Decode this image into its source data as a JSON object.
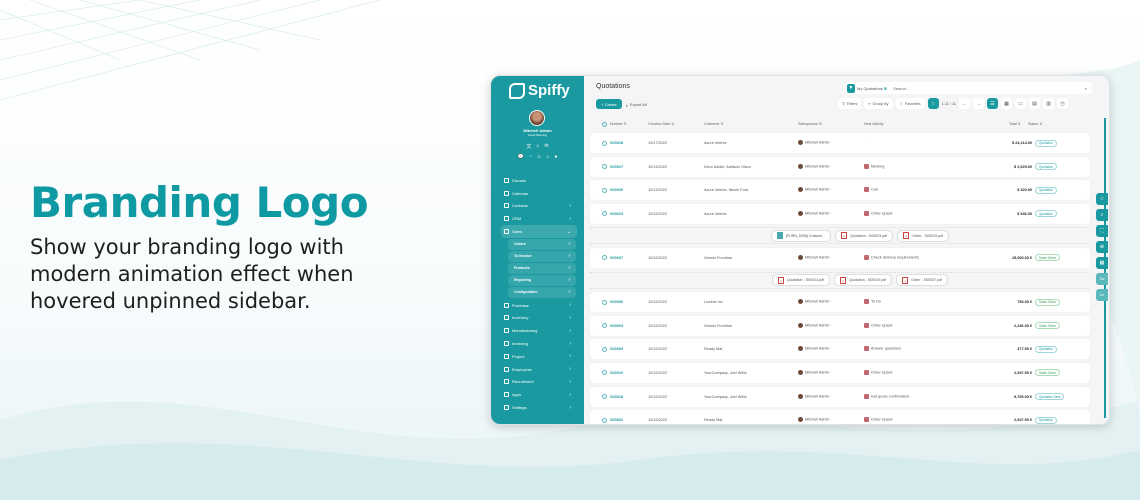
{
  "hero": {
    "title": "Branding Logo",
    "description": "Show your branding logo with modern animation effect when hovered unpinned sidebar."
  },
  "colors": {
    "brand": "#1a9aa0",
    "title": "#0f9aa3"
  },
  "sidebar": {
    "logo": "Spiffy",
    "user_name": "Mitchell Admin",
    "greeting": "Good Morning",
    "items": [
      {
        "label": "Discuss",
        "icon": "chat-icon",
        "chevron": false
      },
      {
        "label": "Calendar",
        "icon": "calendar-icon",
        "chevron": false
      },
      {
        "label": "Contacts",
        "icon": "contacts-icon",
        "chevron": true
      },
      {
        "label": "CRM",
        "icon": "crm-icon",
        "chevron": true
      },
      {
        "label": "Sales",
        "icon": "sales-icon",
        "chevron": true,
        "expanded": true
      }
    ],
    "sales_sub": [
      "Orders",
      "To invoice",
      "Products",
      "Reporting",
      "Configuration"
    ],
    "items_after": [
      {
        "label": "Purchase",
        "icon": "purchase-icon"
      },
      {
        "label": "Inventory",
        "icon": "inventory-icon"
      },
      {
        "label": "Manufacturing",
        "icon": "manufacturing-icon"
      },
      {
        "label": "Invoicing",
        "icon": "invoicing-icon"
      },
      {
        "label": "Project",
        "icon": "project-icon"
      },
      {
        "label": "Employees",
        "icon": "employees-icon"
      },
      {
        "label": "Recruitment",
        "icon": "recruitment-icon"
      },
      {
        "label": "Apps",
        "icon": "apps-icon"
      },
      {
        "label": "Settings",
        "icon": "settings-icon"
      }
    ]
  },
  "main": {
    "title": "Quotations",
    "facet": "My Quotations",
    "search_placeholder": "Search...",
    "create": "+ Create",
    "export": "Export All",
    "filters": "Filters",
    "group_by": "Group By",
    "favorites": "Favorites",
    "pager": "1-11 / 11",
    "columns": [
      "Number",
      "Creation Date",
      "Customer",
      "Salesperson",
      "Next Activity",
      "Total",
      "Status"
    ],
    "rows": [
      {
        "type": "row",
        "number": "S00028",
        "date": "10/17/2022",
        "customer": "Azure Interior",
        "salesperson": "Mitchell Admin",
        "activity": "",
        "total": "$ 24,114.00",
        "status": "Quotation"
      },
      {
        "type": "row",
        "number": "S00027",
        "date": "10/13/2022",
        "customer": "Deco Addict, Addison Olson",
        "salesperson": "Mitchell Admin",
        "activity": "Meeting",
        "total": "$ 2,025.00",
        "status": "Quotation"
      },
      {
        "type": "row",
        "number": "S00026",
        "date": "10/13/2022",
        "customer": "Azure Interior, Nicole Ford",
        "salesperson": "Mitchell Admin",
        "activity": "Call",
        "total": "$ 320.00",
        "status": "Quotation"
      },
      {
        "type": "row",
        "number": "S00023",
        "date": "10/12/2022",
        "customer": "Azure Interior",
        "salesperson": "Mitchell Admin",
        "activity": "Order Upsell",
        "total": "$ 546.00",
        "status": "Quotation"
      },
      {
        "type": "attachments",
        "files": [
          {
            "name": "[FURN_0096] Customi...",
            "kind": "image"
          },
          {
            "name": "Quotation - S00023.pdf",
            "kind": "pdf"
          },
          {
            "name": "Order - S00015.pdf",
            "kind": "pdf"
          }
        ]
      },
      {
        "type": "row",
        "number": "S00007",
        "date": "10/12/2022",
        "customer": "Gemini Furniture",
        "salesperson": "Mitchell Admin",
        "activity": "Check delivery requirements",
        "total": "15,060.00 €",
        "status": "Sales Order"
      },
      {
        "type": "attachments",
        "files": [
          {
            "name": "Quotation - S00023.pdf",
            "kind": "pdf"
          },
          {
            "name": "Quotation - S00010.pdf",
            "kind": "pdf"
          },
          {
            "name": "Order - S00007.pdf",
            "kind": "pdf"
          }
        ]
      },
      {
        "type": "row",
        "number": "S00006",
        "date": "10/12/2022",
        "customer": "Lumber Inc",
        "salesperson": "Mitchell Admin",
        "activity": "To Do",
        "total": "750.00 €",
        "status": "Sales Order"
      },
      {
        "type": "row",
        "number": "S00004",
        "date": "10/12/2022",
        "customer": "Gemini Furniture",
        "salesperson": "Mitchell Admin",
        "activity": "Order Upsell",
        "total": "2,240.00 €",
        "status": "Sales Order"
      },
      {
        "type": "row",
        "number": "S00003",
        "date": "10/12/2022",
        "customer": "Ready Mat",
        "salesperson": "Mitchell Admin",
        "activity": "Answer questions",
        "total": "377.50 €",
        "status": "Quotation"
      },
      {
        "type": "row",
        "number": "S00019",
        "date": "10/12/2022",
        "customer": "YourCompany, Joel Willis",
        "salesperson": "Mitchell Admin",
        "activity": "Order Upsell",
        "total": "2,947.50 €",
        "status": "Sales Order"
      },
      {
        "type": "row",
        "number": "S00018",
        "date": "10/12/2022",
        "customer": "YourCompany, Joel Willis",
        "salesperson": "Mitchell Admin",
        "activity": "Get quote confirmation",
        "total": "9,705.00 €",
        "status": "Quotation Sent"
      },
      {
        "type": "row",
        "number": "S00002",
        "date": "10/12/2022",
        "customer": "Ready Mat",
        "salesperson": "Mitchell Admin",
        "activity": "Order Upsell",
        "total": "2,947.50 €",
        "status": "Quotation"
      }
    ]
  },
  "side_buttons": [
    "star-icon",
    "search-icon",
    "fullscreen-icon",
    "zoom-icon",
    "grid-icon",
    "Sw",
    "Le"
  ]
}
